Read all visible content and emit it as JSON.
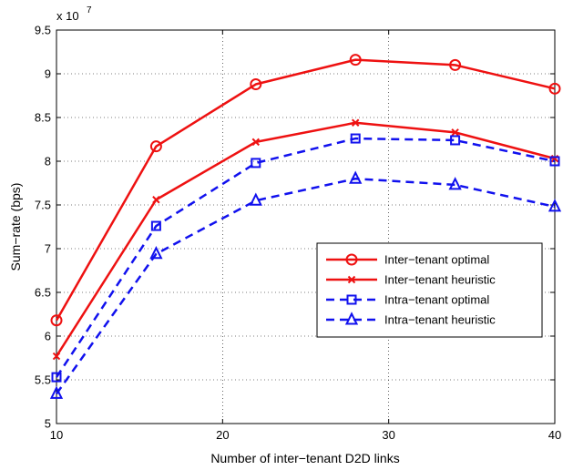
{
  "chart_data": {
    "type": "line",
    "title": "",
    "xlabel": "Number of inter−tenant D2D links",
    "ylabel": "Sum−rate (bps)",
    "y_scale_label": "x 10",
    "y_scale_exponent": "7",
    "xlim": [
      10,
      40
    ],
    "ylim": [
      5,
      9.5
    ],
    "xticks": [
      "10",
      "20",
      "30",
      "40"
    ],
    "yticks": [
      "5",
      "5.5",
      "6",
      "6.5",
      "7",
      "7.5",
      "8",
      "8.5",
      "9",
      "9.5"
    ],
    "grid": true,
    "legend_position": "center-right",
    "x": [
      10,
      16,
      22,
      28,
      34,
      40
    ],
    "series": [
      {
        "name": "Inter−tenant optimal",
        "values": [
          6.18,
          8.17,
          8.88,
          9.16,
          9.1,
          8.83
        ],
        "color": "#ee1111",
        "line": "solid",
        "marker": "circle"
      },
      {
        "name": "Inter−tenant heuristic",
        "values": [
          5.77,
          7.56,
          8.22,
          8.44,
          8.33,
          8.03
        ],
        "color": "#ee1111",
        "line": "solid",
        "marker": "x"
      },
      {
        "name": "Intra−tenant optimal",
        "values": [
          5.53,
          7.26,
          7.98,
          8.26,
          8.24,
          8.0
        ],
        "color": "#1111ee",
        "line": "dashed",
        "marker": "square"
      },
      {
        "name": "Intra−tenant heuristic",
        "values": [
          5.34,
          6.94,
          7.55,
          7.8,
          7.73,
          7.48
        ],
        "color": "#1111ee",
        "line": "dashed",
        "marker": "triangle"
      }
    ]
  }
}
